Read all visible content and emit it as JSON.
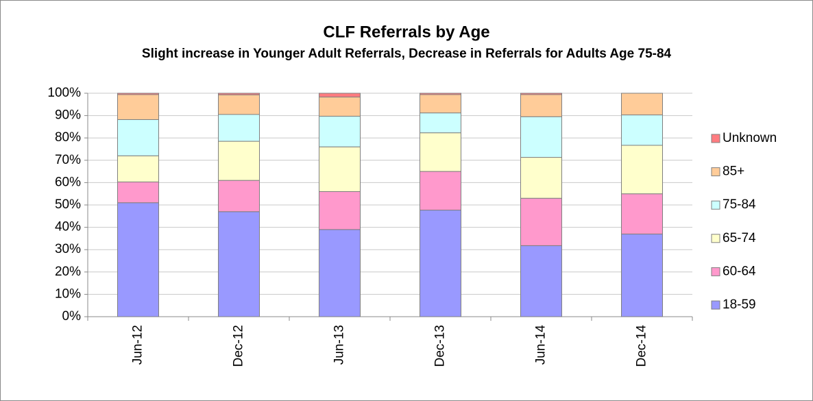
{
  "chart_data": {
    "type": "stacked_bar",
    "title": "CLF Referrals by Age",
    "subtitle": "Slight increase in Younger Adult Referrals, Decrease in Referrals for Adults Age 75-84",
    "categories": [
      "Jun-12",
      "Dec-12",
      "Jun-13",
      "Dec-13",
      "Jun-14",
      "Dec-14"
    ],
    "series": [
      {
        "name": "18-59",
        "color": "#9999ff",
        "values": [
          51,
          47,
          39,
          47.7,
          31.8,
          37
        ]
      },
      {
        "name": "60-64",
        "color": "#ff99cc",
        "values": [
          9.3,
          14,
          17,
          17.3,
          21.2,
          18
        ]
      },
      {
        "name": "65-74",
        "color": "#ffffcc",
        "values": [
          11.7,
          17.5,
          20,
          17.3,
          18.3,
          21.7
        ]
      },
      {
        "name": "75-84",
        "color": "#ccffff",
        "values": [
          16.2,
          12,
          13.7,
          8.9,
          18.2,
          13.6
        ]
      },
      {
        "name": "85+",
        "color": "#ffcc99",
        "values": [
          11.2,
          8.8,
          8.6,
          8.2,
          9.9,
          9.7
        ]
      },
      {
        "name": "Unknown",
        "color": "#ff7c80",
        "values": [
          0.6,
          0.7,
          1.7,
          0.6,
          0.6,
          0
        ]
      }
    ],
    "ylim": [
      0,
      100
    ],
    "yticks": [
      {
        "value": 0,
        "label": "0%"
      },
      {
        "value": 10,
        "label": "10%"
      },
      {
        "value": 20,
        "label": "20%"
      },
      {
        "value": 30,
        "label": "30%"
      },
      {
        "value": 40,
        "label": "40%"
      },
      {
        "value": 50,
        "label": "50%"
      },
      {
        "value": 60,
        "label": "60%"
      },
      {
        "value": 70,
        "label": "70%"
      },
      {
        "value": 80,
        "label": "80%"
      },
      {
        "value": 90,
        "label": "90%"
      },
      {
        "value": 100,
        "label": "100%"
      }
    ],
    "grid": true,
    "legend": "right"
  }
}
